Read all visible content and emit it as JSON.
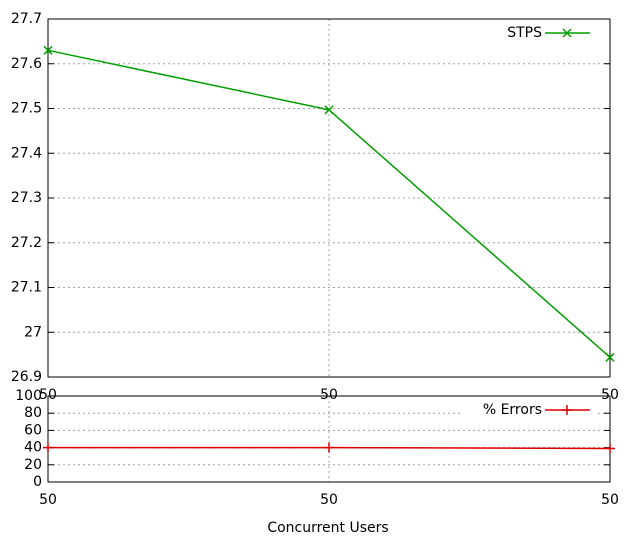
{
  "chart_data": [
    {
      "type": "line",
      "categories": [
        "50",
        "50",
        "50"
      ],
      "series": [
        {
          "name": "STPS",
          "color": "#00a000",
          "marker": "x",
          "values": [
            27.63,
            27.497,
            26.944
          ]
        }
      ],
      "ylim": [
        26.9,
        27.7
      ],
      "yticks": [
        26.9,
        27,
        27.1,
        27.2,
        27.3,
        27.4,
        27.5,
        27.6,
        27.7
      ],
      "grid": true,
      "legend": "top-right"
    },
    {
      "type": "line",
      "x_label": "Concurrent Users",
      "categories": [
        "50",
        "50",
        "50"
      ],
      "series": [
        {
          "name": "% Errors",
          "color": "#e00000",
          "marker": "+",
          "values": [
            40,
            40,
            39
          ]
        }
      ],
      "ylim": [
        0,
        100
      ],
      "yticks": [
        0,
        20,
        40,
        60,
        80,
        100
      ],
      "grid": true,
      "legend": "top-right"
    }
  ]
}
